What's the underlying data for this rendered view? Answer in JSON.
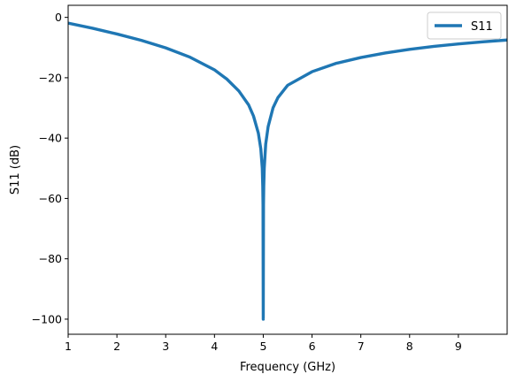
{
  "chart_data": {
    "type": "line",
    "title": "",
    "xlabel": "Frequency (GHz)",
    "ylabel": "S11 (dB)",
    "xlim": [
      1,
      10
    ],
    "ylim": [
      -105,
      4
    ],
    "x_ticks": [
      1,
      2,
      3,
      4,
      5,
      6,
      7,
      8,
      9
    ],
    "x_tick_labels": [
      "1",
      "2",
      "3",
      "4",
      "5",
      "6",
      "7",
      "8",
      "9"
    ],
    "y_ticks": [
      0,
      -20,
      -40,
      -60,
      -80,
      -100
    ],
    "y_tick_labels": [
      "0",
      "−20",
      "−40",
      "−60",
      "−80",
      "−100"
    ],
    "grid": false,
    "legend": {
      "position": "top-right",
      "entries": [
        "S11"
      ]
    },
    "series": [
      {
        "name": "S11",
        "color": "#1f77b4",
        "x": [
          1,
          1.5,
          2,
          2.5,
          3,
          3.5,
          4,
          4.25,
          4.5,
          4.7,
          4.8,
          4.9,
          4.95,
          4.98,
          4.99,
          4.995,
          5.0,
          5.005,
          5.01,
          5.02,
          5.05,
          5.1,
          5.2,
          5.3,
          5.5,
          6,
          6.5,
          7,
          7.5,
          8,
          8.5,
          9,
          9.5,
          10
        ],
        "y": [
          -1.9,
          -3.6,
          -5.5,
          -7.6,
          -10.1,
          -13.2,
          -17.4,
          -20.4,
          -24.4,
          -29.0,
          -32.7,
          -38.4,
          -43.6,
          -50.0,
          -56.0,
          -62.0,
          -100,
          -62.0,
          -56.0,
          -50.0,
          -42.0,
          -36.2,
          -30.0,
          -26.6,
          -22.5,
          -18.0,
          -15.2,
          -13.3,
          -11.8,
          -10.6,
          -9.6,
          -8.8,
          -8.1,
          -7.5
        ]
      }
    ]
  }
}
